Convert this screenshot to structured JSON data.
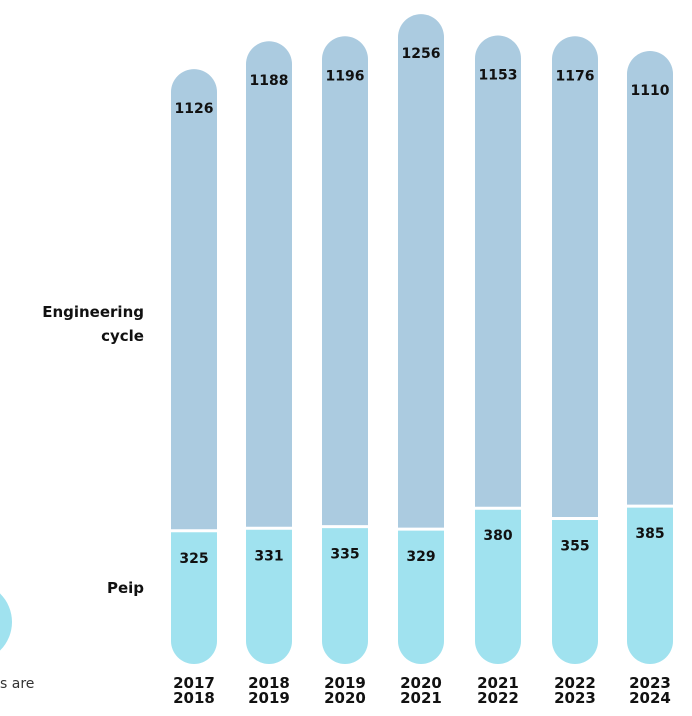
{
  "chart_data": {
    "type": "bar",
    "stacked": true,
    "categories": [
      "2017\n2018",
      "2018\n2019",
      "2019\n2020",
      "2020\n2021",
      "2021\n2022",
      "2022\n2023",
      "2023\n2024"
    ],
    "series": [
      {
        "name": "Peip",
        "color": "#a0e2ef",
        "values": [
          325,
          331,
          335,
          329,
          380,
          355,
          385
        ]
      },
      {
        "name": "Engineering cycle",
        "color": "#abcbe0",
        "values": [
          1126,
          1188,
          1196,
          1256,
          1153,
          1176,
          1110
        ]
      }
    ],
    "ylim": [
      0,
      1600
    ]
  },
  "fragment_text": "s are"
}
